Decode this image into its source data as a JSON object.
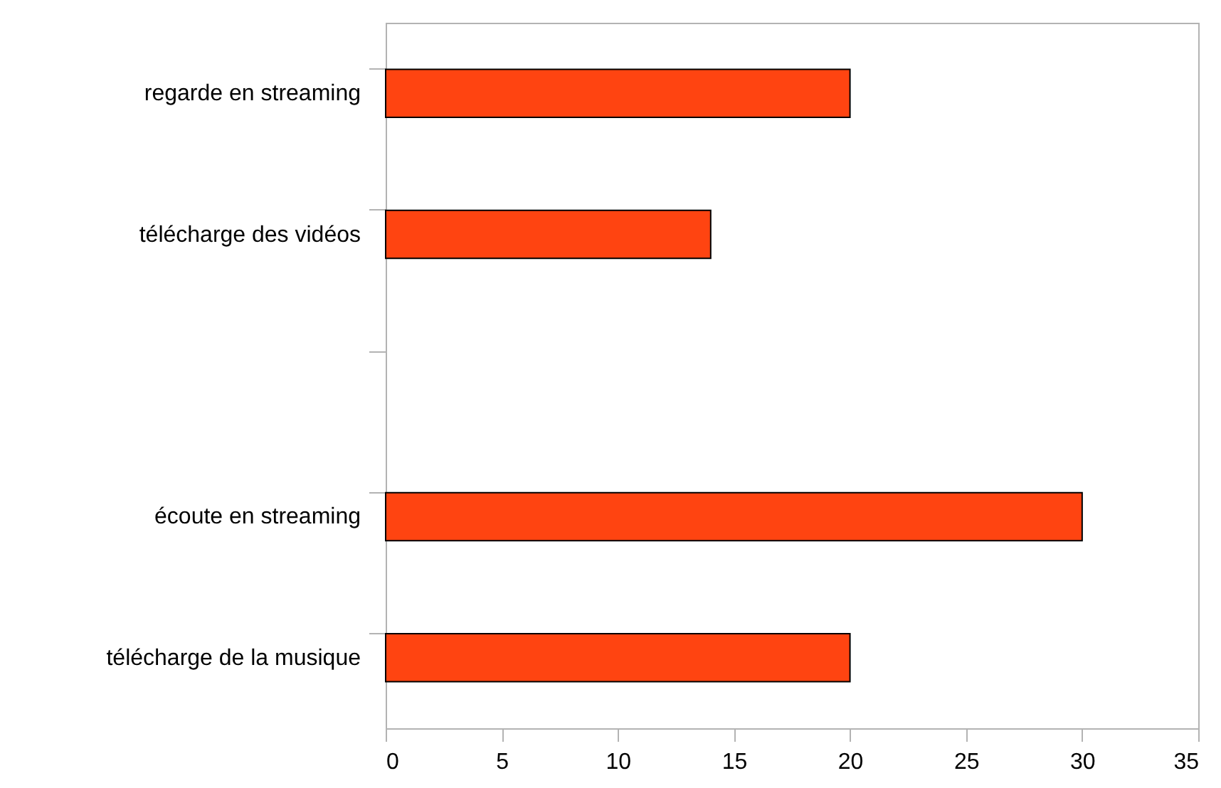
{
  "chart_data": {
    "type": "bar",
    "orientation": "horizontal",
    "categories": [
      "regarde en streaming",
      "télécharge des vidéos",
      null,
      "écoute en streaming",
      "télécharge de la musique"
    ],
    "values": [
      20,
      14,
      null,
      30,
      20
    ],
    "color": "#ff4411",
    "xlim": [
      0,
      35
    ],
    "xticks": [
      0,
      5,
      10,
      15,
      20,
      25,
      30,
      35
    ],
    "grid": false
  }
}
